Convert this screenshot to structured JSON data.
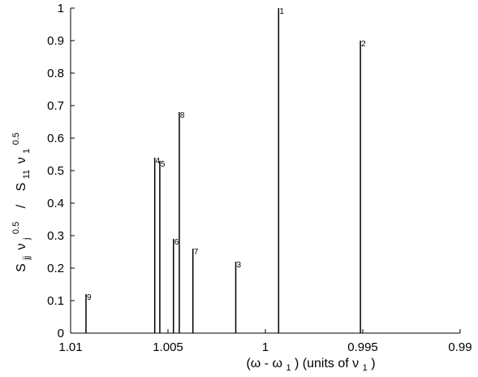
{
  "chart_data": {
    "type": "stem",
    "xlabel_parts": {
      "paren_open": "(ω - ω",
      "sub1": "1",
      "mid": ")  (units of ν",
      "sub2": "1",
      "end": ")"
    },
    "ylabel_parts": {
      "S1": "S",
      "jj": "jj",
      "nu1": "ν",
      "j": "j",
      "pow1": "0.5",
      "slash": "/",
      "S2": "S",
      "sub11": "11",
      "nu2": "ν",
      "one": "1",
      "pow2": "0.5"
    },
    "x_axis": {
      "reversed": true,
      "xlim": [
        0.99,
        1.01
      ],
      "ticks": [
        1.01,
        1.005,
        1.0,
        0.995,
        0.99
      ],
      "tick_labels": [
        "1.01",
        "1.005",
        "1",
        "0.995",
        "0.99"
      ]
    },
    "y_axis": {
      "ylim": [
        0,
        1
      ],
      "ticks": [
        0,
        0.1,
        0.2,
        0.3,
        0.4,
        0.5,
        0.6,
        0.7,
        0.8,
        0.9,
        1.0
      ],
      "tick_labels": [
        "0",
        "0.1",
        "0.2",
        "0.3",
        "0.4",
        "0.5",
        "0.6",
        "0.7",
        "0.8",
        "0.9",
        "1"
      ]
    },
    "stems": [
      {
        "label": "1",
        "x": 0.99932,
        "y": 1.0
      },
      {
        "label": "2",
        "x": 0.99512,
        "y": 0.9
      },
      {
        "label": "3",
        "x": 1.00152,
        "y": 0.22
      },
      {
        "label": "4",
        "x": 1.00568,
        "y": 0.54
      },
      {
        "label": "5",
        "x": 1.00542,
        "y": 0.53
      },
      {
        "label": "6",
        "x": 1.00472,
        "y": 0.29
      },
      {
        "label": "7",
        "x": 1.00372,
        "y": 0.26
      },
      {
        "label": "8",
        "x": 1.00442,
        "y": 0.68
      },
      {
        "label": "9",
        "x": 1.00921,
        "y": 0.12
      }
    ],
    "grid": false
  }
}
